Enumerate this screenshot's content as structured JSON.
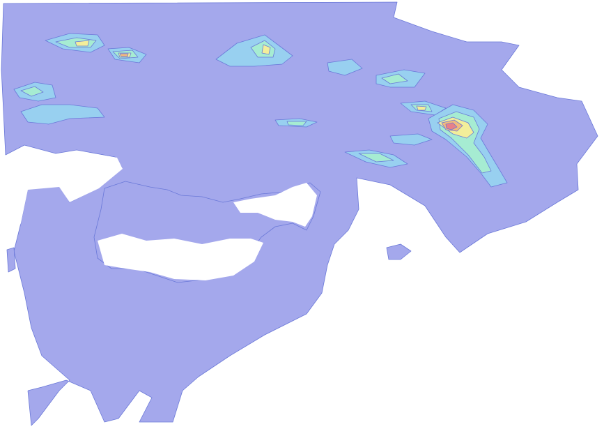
{
  "map": {
    "background_color": "#ffffff",
    "contour_levels": [
      {
        "level": 1,
        "color": "#a4a8ec"
      },
      {
        "level": 2,
        "color": "#98d0f0"
      },
      {
        "level": 3,
        "color": "#a6ecd2"
      },
      {
        "level": 4,
        "color": "#f2ee9a"
      },
      {
        "level": 5,
        "color": "#f2ba7c"
      },
      {
        "level": 6,
        "color": "#e88088"
      }
    ],
    "contour_line_color": "#6a78d8"
  }
}
